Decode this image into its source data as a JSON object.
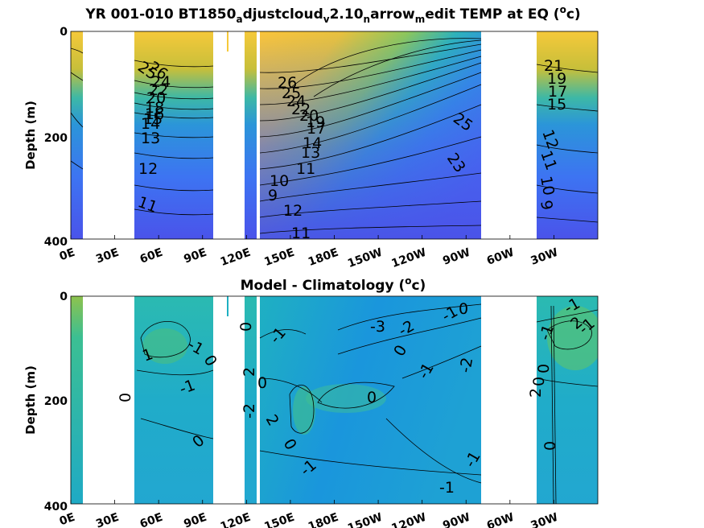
{
  "chart_data": [
    {
      "type": "heatmap",
      "title": "YR 001-010 BT1850_adjustcloud_v2.10_narrow_medit TEMP at EQ (°c)",
      "title_parts": {
        "p1": "YR 001-010 BT1850",
        "s1": "a",
        "p2": "djustcloud",
        "s2": "v",
        "p3": "2.10",
        "s3": "n",
        "p4": "arrow",
        "s4": "m",
        "p5": "edit TEMP at EQ (",
        "sup": "o",
        "p6": "c)"
      },
      "ylabel": "Depth (m)",
      "ylim": [
        0,
        400
      ],
      "y_ticks": [
        "0",
        "200",
        "400"
      ],
      "x_ticks": [
        "0E",
        "30E",
        "60E",
        "90E",
        "120E",
        "150E",
        "180E",
        "150W",
        "120W",
        "90W",
        "60W",
        "30W"
      ],
      "colormap": "parula",
      "contour_labels": [
        "26",
        "25",
        "24",
        "22",
        "20",
        "18",
        "16",
        "15",
        "14",
        "13",
        "12",
        "11",
        "10",
        "9",
        "26",
        "25",
        "24",
        "23",
        "22",
        "20",
        "19",
        "18",
        "17",
        "16",
        "15",
        "14",
        "13",
        "12",
        "11",
        "10",
        "9",
        "12",
        "11",
        "25",
        "23",
        "21",
        "19",
        "17",
        "15",
        "13",
        "12",
        "11",
        "10",
        "9"
      ],
      "land_gaps_lon": [
        [
          8,
          45
        ],
        [
          97,
          118
        ],
        [
          121,
          124
        ],
        [
          136,
          138
        ],
        [
          255,
          283
        ]
      ]
    },
    {
      "type": "heatmap",
      "title": "Model - Climatology (°c)",
      "title_parts": {
        "p1": "Model - Climatology (",
        "sup": "o",
        "p2": "c)"
      },
      "ylabel": "Depth (m)",
      "ylim": [
        0,
        400
      ],
      "y_ticks": [
        "0",
        "200",
        "400"
      ],
      "x_ticks": [
        "0E",
        "30E",
        "60E",
        "90E",
        "120E",
        "150E",
        "180E",
        "150W",
        "120W",
        "90W",
        "60W",
        "30W"
      ],
      "colormap": "parula",
      "contour_labels": [
        "1",
        "-1",
        "0",
        "-1",
        "0",
        "0",
        "0",
        "1",
        "2",
        "-1",
        "0",
        "-1",
        "-2",
        "0",
        "2",
        "-1",
        "-3",
        "-2",
        "0",
        "-1",
        "-2",
        "-1",
        "0",
        "0",
        "-1",
        "-1",
        "0",
        "-1",
        "-1",
        "2",
        "-1",
        "0",
        "2",
        "0",
        "-1"
      ]
    }
  ]
}
